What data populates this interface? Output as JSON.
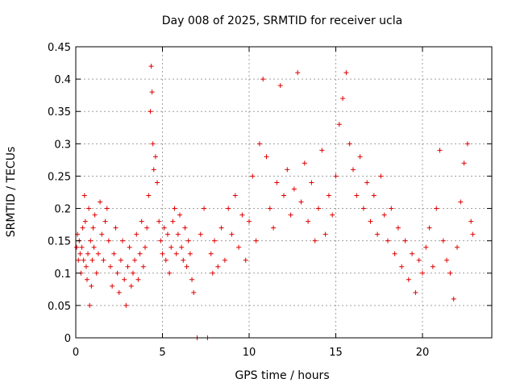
{
  "chart_data": {
    "type": "scatter",
    "title": "Day 008 of 2025, SRMTID for receiver ucla",
    "xlabel": "GPS time / hours",
    "ylabel": "SRMTID / TECUs",
    "xlim": [
      0,
      24
    ],
    "ylim": [
      0,
      0.45
    ],
    "xticks": [
      0,
      5,
      10,
      15,
      20
    ],
    "xtick_labels": [
      "0",
      "5",
      "10",
      "15",
      "20"
    ],
    "yticks": [
      0,
      0.05,
      0.1,
      0.15,
      0.2,
      0.25,
      0.3,
      0.35,
      0.4,
      0.45
    ],
    "ytick_labels": [
      "0",
      "0.05",
      "0.1",
      "0.15",
      "0.2",
      "0.25",
      "0.3",
      "0.35",
      "0.4",
      "0.45"
    ],
    "grid": true,
    "marker": "plus",
    "color": "#e00000",
    "points": [
      [
        0.05,
        0.14
      ],
      [
        0.1,
        0.16
      ],
      [
        0.15,
        0.12
      ],
      [
        0.2,
        0.15
      ],
      [
        0.25,
        0.13
      ],
      [
        0.3,
        0.1
      ],
      [
        0.35,
        0.14
      ],
      [
        0.4,
        0.17
      ],
      [
        0.45,
        0.12
      ],
      [
        0.5,
        0.22
      ],
      [
        0.55,
        0.18
      ],
      [
        0.6,
        0.11
      ],
      [
        0.65,
        0.09
      ],
      [
        0.7,
        0.13
      ],
      [
        0.75,
        0.2
      ],
      [
        0.8,
        0.05
      ],
      [
        0.85,
        0.15
      ],
      [
        0.9,
        0.08
      ],
      [
        0.95,
        0.12
      ],
      [
        1.0,
        0.17
      ],
      [
        1.05,
        0.14
      ],
      [
        1.1,
        0.19
      ],
      [
        1.2,
        0.1
      ],
      [
        1.3,
        0.13
      ],
      [
        1.4,
        0.21
      ],
      [
        1.5,
        0.16
      ],
      [
        1.6,
        0.12
      ],
      [
        1.7,
        0.18
      ],
      [
        1.8,
        0.2
      ],
      [
        1.9,
        0.15
      ],
      [
        2.0,
        0.11
      ],
      [
        2.1,
        0.08
      ],
      [
        2.2,
        0.13
      ],
      [
        2.3,
        0.17
      ],
      [
        2.4,
        0.1
      ],
      [
        2.5,
        0.07
      ],
      [
        2.6,
        0.12
      ],
      [
        2.7,
        0.15
      ],
      [
        2.8,
        0.09
      ],
      [
        2.9,
        0.05
      ],
      [
        3.0,
        0.11
      ],
      [
        3.1,
        0.14
      ],
      [
        3.2,
        0.08
      ],
      [
        3.3,
        0.1
      ],
      [
        3.4,
        0.12
      ],
      [
        3.5,
        0.16
      ],
      [
        3.6,
        0.09
      ],
      [
        3.7,
        0.13
      ],
      [
        3.8,
        0.18
      ],
      [
        3.9,
        0.11
      ],
      [
        4.0,
        0.14
      ],
      [
        4.1,
        0.17
      ],
      [
        4.2,
        0.22
      ],
      [
        4.3,
        0.35
      ],
      [
        4.35,
        0.42
      ],
      [
        4.4,
        0.38
      ],
      [
        4.45,
        0.3
      ],
      [
        4.5,
        0.26
      ],
      [
        4.6,
        0.28
      ],
      [
        4.7,
        0.24
      ],
      [
        4.8,
        0.18
      ],
      [
        4.9,
        0.15
      ],
      [
        5.0,
        0.13
      ],
      [
        5.1,
        0.17
      ],
      [
        5.2,
        0.12
      ],
      [
        5.3,
        0.16
      ],
      [
        5.4,
        0.1
      ],
      [
        5.5,
        0.14
      ],
      [
        5.6,
        0.18
      ],
      [
        5.7,
        0.2
      ],
      [
        5.8,
        0.13
      ],
      [
        5.9,
        0.16
      ],
      [
        6.0,
        0.19
      ],
      [
        6.1,
        0.14
      ],
      [
        6.2,
        0.12
      ],
      [
        6.3,
        0.17
      ],
      [
        6.4,
        0.11
      ],
      [
        6.5,
        0.15
      ],
      [
        6.6,
        0.13
      ],
      [
        6.7,
        0.09
      ],
      [
        6.8,
        0.07
      ],
      [
        7.0,
        0.0
      ],
      [
        7.6,
        0.0
      ],
      [
        7.2,
        0.16
      ],
      [
        7.4,
        0.2
      ],
      [
        7.8,
        0.13
      ],
      [
        7.9,
        0.1
      ],
      [
        8.0,
        0.15
      ],
      [
        8.2,
        0.11
      ],
      [
        8.4,
        0.17
      ],
      [
        8.6,
        0.12
      ],
      [
        8.8,
        0.2
      ],
      [
        9.0,
        0.16
      ],
      [
        9.2,
        0.22
      ],
      [
        9.4,
        0.14
      ],
      [
        9.6,
        0.19
      ],
      [
        9.8,
        0.12
      ],
      [
        10.0,
        0.18
      ],
      [
        10.2,
        0.25
      ],
      [
        10.4,
        0.15
      ],
      [
        10.6,
        0.3
      ],
      [
        10.8,
        0.4
      ],
      [
        11.0,
        0.28
      ],
      [
        11.2,
        0.2
      ],
      [
        11.4,
        0.17
      ],
      [
        11.6,
        0.24
      ],
      [
        11.8,
        0.39
      ],
      [
        12.0,
        0.22
      ],
      [
        12.2,
        0.26
      ],
      [
        12.4,
        0.19
      ],
      [
        12.6,
        0.23
      ],
      [
        12.8,
        0.41
      ],
      [
        13.0,
        0.21
      ],
      [
        13.2,
        0.27
      ],
      [
        13.4,
        0.18
      ],
      [
        13.6,
        0.24
      ],
      [
        13.8,
        0.15
      ],
      [
        14.0,
        0.2
      ],
      [
        14.2,
        0.29
      ],
      [
        14.4,
        0.16
      ],
      [
        14.6,
        0.22
      ],
      [
        14.8,
        0.19
      ],
      [
        15.0,
        0.25
      ],
      [
        15.2,
        0.33
      ],
      [
        15.4,
        0.37
      ],
      [
        15.6,
        0.41
      ],
      [
        15.8,
        0.3
      ],
      [
        16.0,
        0.26
      ],
      [
        16.2,
        0.22
      ],
      [
        16.4,
        0.28
      ],
      [
        16.6,
        0.2
      ],
      [
        16.8,
        0.24
      ],
      [
        17.0,
        0.18
      ],
      [
        17.2,
        0.22
      ],
      [
        17.4,
        0.16
      ],
      [
        17.6,
        0.25
      ],
      [
        17.8,
        0.19
      ],
      [
        18.0,
        0.15
      ],
      [
        18.2,
        0.2
      ],
      [
        18.4,
        0.13
      ],
      [
        18.6,
        0.17
      ],
      [
        18.8,
        0.11
      ],
      [
        19.0,
        0.15
      ],
      [
        19.2,
        0.09
      ],
      [
        19.4,
        0.13
      ],
      [
        19.6,
        0.07
      ],
      [
        19.8,
        0.12
      ],
      [
        20.0,
        0.1
      ],
      [
        20.2,
        0.14
      ],
      [
        20.4,
        0.17
      ],
      [
        20.6,
        0.11
      ],
      [
        20.8,
        0.2
      ],
      [
        21.0,
        0.29
      ],
      [
        21.2,
        0.15
      ],
      [
        21.4,
        0.12
      ],
      [
        21.6,
        0.1
      ],
      [
        21.8,
        0.06
      ],
      [
        22.0,
        0.14
      ],
      [
        22.2,
        0.21
      ],
      [
        22.4,
        0.27
      ],
      [
        22.6,
        0.3
      ],
      [
        22.8,
        0.18
      ],
      [
        22.9,
        0.16
      ]
    ]
  }
}
